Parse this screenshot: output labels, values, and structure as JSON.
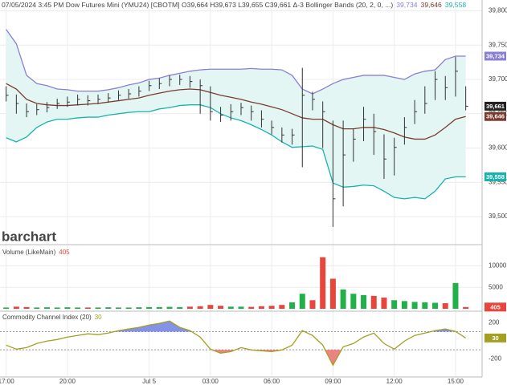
{
  "chart_data": [
    {
      "type": "ohlc",
      "title": "07/05/2024 3:45 PM Dow Futures Mini (YMU24) [CBOTM] O39,664 H39,673 L39,655 C39,661 Δ-3 Bollinger Bands (20, 2, 0, ...)",
      "watermark": "barchart",
      "x": [
        0,
        0.5,
        1,
        1.5,
        2,
        2.5,
        3,
        3.5,
        4,
        4.5,
        5,
        5.5,
        6,
        6.5,
        7,
        7.5,
        8,
        8.5,
        9,
        9.5,
        10,
        10.5,
        11,
        11.5,
        12,
        12.5,
        13,
        13.5,
        14,
        14.5,
        15,
        15.5,
        16,
        16.5,
        17,
        17.5,
        18,
        18.5,
        19,
        19.5,
        20,
        20.5,
        21,
        21.5,
        22,
        22.5
      ],
      "xlim": [
        -0.3,
        23.3
      ],
      "ohlc": {
        "color": "#333333",
        "last_value_label": "39,661",
        "tag_color": "#222222",
        "high": [
          39690,
          39678,
          39665,
          39664,
          39667,
          39672,
          39675,
          39678,
          39677,
          39678,
          39680,
          39684,
          39686,
          39690,
          39698,
          39702,
          39706,
          39707,
          39705,
          39700,
          39690,
          39660,
          39664,
          39666,
          39662,
          39655,
          39640,
          39630,
          39628,
          39717,
          39682,
          39668,
          39640,
          39640,
          39628,
          39660,
          39650,
          39620,
          39615,
          39645,
          39670,
          39690,
          39712,
          39705,
          39733,
          39690
        ],
        "low": [
          39668,
          39650,
          39645,
          39648,
          39652,
          39657,
          39660,
          39662,
          39662,
          39664,
          39666,
          39670,
          39672,
          39675,
          39683,
          39686,
          39690,
          39692,
          39688,
          39650,
          39640,
          39638,
          39640,
          39648,
          39640,
          39630,
          39620,
          39608,
          39605,
          39572,
          39655,
          39600,
          39485,
          39515,
          39580,
          39610,
          39590,
          39555,
          39560,
          39605,
          39635,
          39650,
          39670,
          39670,
          39675,
          39655
        ],
        "close": [
          39677,
          39665,
          39653,
          39656,
          39659,
          39665,
          39667,
          39671,
          39669,
          39671,
          39673,
          39677,
          39679,
          39683,
          39691,
          39694,
          39700,
          39700,
          39697,
          39691,
          39653,
          39648,
          39653,
          39659,
          39653,
          39642,
          39630,
          39619,
          39619,
          39677,
          39671,
          39653,
          39526,
          39590,
          39613,
          39642,
          39624,
          39584,
          39601,
          39630,
          39653,
          39665,
          39700,
          39688,
          39712,
          39661
        ]
      },
      "series": [
        {
          "color": "#8a7fd6",
          "last_value_label": "39,734",
          "values": [
            39773,
            39752,
            39706,
            39694,
            39691,
            39686,
            39685,
            39683,
            39683,
            39683,
            39685,
            39688,
            39692,
            39695,
            39700,
            39702,
            39706,
            39709,
            39712,
            39714,
            39715,
            39715,
            39715,
            39715,
            39716,
            39715,
            39715,
            39714,
            39706,
            39686,
            39679,
            39686,
            39694,
            39700,
            39703,
            39706,
            39706,
            39706,
            39703,
            39700,
            39708,
            39712,
            39714,
            39729,
            39734,
            39734
          ]
        },
        {
          "color": "#7a3b2e",
          "last_value_label": "39,646",
          "values": [
            39694,
            39686,
            39671,
            39665,
            39663,
            39662,
            39662,
            39663,
            39664,
            39665,
            39667,
            39669,
            39671,
            39673,
            39677,
            39680,
            39683,
            39685,
            39686,
            39685,
            39681,
            39677,
            39674,
            39671,
            39667,
            39664,
            39660,
            39656,
            39650,
            39644,
            39642,
            39642,
            39634,
            39628,
            39628,
            39630,
            39630,
            39627,
            39622,
            39616,
            39613,
            39613,
            39619,
            39630,
            39642,
            39646
          ]
        },
        {
          "color": "#17b3ad",
          "last_value_label": "39,558",
          "values": [
            39615,
            39609,
            39616,
            39630,
            39638,
            39642,
            39642,
            39644,
            39645,
            39645,
            39648,
            39650,
            39652,
            39653,
            39653,
            39657,
            39659,
            39662,
            39663,
            39663,
            39659,
            39650,
            39644,
            39640,
            39634,
            39627,
            39619,
            39609,
            39601,
            39602,
            39603,
            39598,
            39549,
            39543,
            39544,
            39546,
            39545,
            39537,
            39528,
            39526,
            39528,
            39526,
            39537,
            39555,
            39558,
            39558
          ]
        }
      ],
      "band_fill": "#e3f6f4",
      "ylim": [
        39465,
        39810
      ],
      "yticks": [
        {
          "value": 39800,
          "label": "39,800"
        },
        {
          "value": 39750,
          "label": "39,750"
        },
        {
          "value": 39700,
          "label": "39,700"
        },
        {
          "value": 39650,
          "label": "39,650"
        },
        {
          "value": 39600,
          "label": "39,600"
        },
        {
          "value": 39550,
          "label": "39,550"
        },
        {
          "value": 39500,
          "label": "39,500"
        }
      ],
      "grid": true
    },
    {
      "type": "bar",
      "title": "Volume  (LikeMain)",
      "up_color": "#22b04b",
      "down_color": "#e8453c",
      "values": [
        300,
        500,
        400,
        300,
        350,
        300,
        350,
        300,
        300,
        300,
        350,
        300,
        300,
        350,
        400,
        400,
        450,
        400,
        500,
        600,
        900,
        700,
        500,
        500,
        450,
        600,
        700,
        900,
        1500,
        3500,
        2000,
        12000,
        7000,
        4500,
        3500,
        3200,
        3000,
        2600,
        2000,
        1800,
        1600,
        1500,
        1400,
        1300,
        6000,
        405
      ],
      "ylim": [
        0,
        12700
      ],
      "yticks": [
        5000,
        10000
      ]
    },
    {
      "type": "line",
      "title": "Commodity Channel Index  (20)",
      "color": "#a3a024",
      "values": [
        -49,
        -93,
        -76,
        -31,
        -4,
        13,
        40,
        58,
        76,
        67,
        84,
        111,
        129,
        147,
        173,
        191,
        218,
        147,
        111,
        40,
        -93,
        -138,
        -120,
        -76,
        -102,
        -111,
        -120,
        -102,
        -49,
        111,
        58,
        -49,
        -271,
        -67,
        -31,
        40,
        84,
        -31,
        -93,
        -4,
        58,
        84,
        111,
        129,
        102,
        30
      ],
      "levels": [
        100,
        -100
      ],
      "fill_above_color": "#5b6ee0",
      "fill_below_color": "#e85a5a",
      "ylim": [
        -400,
        290
      ],
      "yticks": [
        200,
        -200
      ],
      "xticks": [
        {
          "value": 0,
          "label": "17:00"
        },
        {
          "value": 3,
          "label": "20:00"
        },
        {
          "value": 7,
          "label": "Jul 5"
        },
        {
          "value": 10,
          "label": "03:00"
        },
        {
          "value": 13,
          "label": "06:00"
        },
        {
          "value": 16,
          "label": "09:00"
        },
        {
          "value": 19,
          "label": "12:00"
        },
        {
          "value": 22,
          "label": "15:00"
        }
      ]
    }
  ]
}
